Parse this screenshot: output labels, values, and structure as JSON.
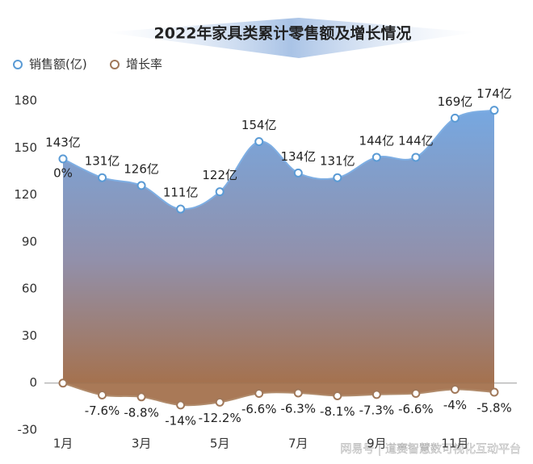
{
  "chart_data": {
    "type": "area-line",
    "title": "2022年家具类累计零售额及增长情况",
    "categories": [
      "1月",
      null,
      "3月",
      null,
      "5月",
      null,
      "7月",
      null,
      "9月",
      null,
      "11月",
      null
    ],
    "series": [
      {
        "name": "销售额(亿)",
        "color": "#5b9bd5",
        "values": [
          143,
          131,
          126,
          111,
          122,
          154,
          134,
          131,
          144,
          144,
          169,
          174
        ],
        "value_labels": [
          "143亿",
          "131亿",
          "126亿",
          "111亿",
          "122亿",
          "154亿",
          "134亿",
          "131亿",
          "144亿",
          "144亿",
          "169亿",
          "174亿"
        ]
      },
      {
        "name": "增长率",
        "color": "#a0785a",
        "values": [
          0,
          -7.6,
          -8.8,
          -14,
          -12.2,
          -6.6,
          -6.3,
          -8.1,
          -7.3,
          -6.6,
          -4,
          -5.8
        ],
        "value_labels": [
          "0%",
          "-7.6%",
          "-8.8%",
          "-14%",
          "-12.2%",
          "-6.6%",
          "-6.3%",
          "-8.1%",
          "-7.3%",
          "-6.6%",
          "-4%",
          "-5.8%"
        ]
      }
    ],
    "ylim": [
      -30,
      180
    ],
    "yticks": [
      -30,
      0,
      30,
      60,
      90,
      120,
      150,
      180
    ],
    "legend": "top-left",
    "watermark": "网易号 | 道赛智慧数可视化互动平台"
  }
}
